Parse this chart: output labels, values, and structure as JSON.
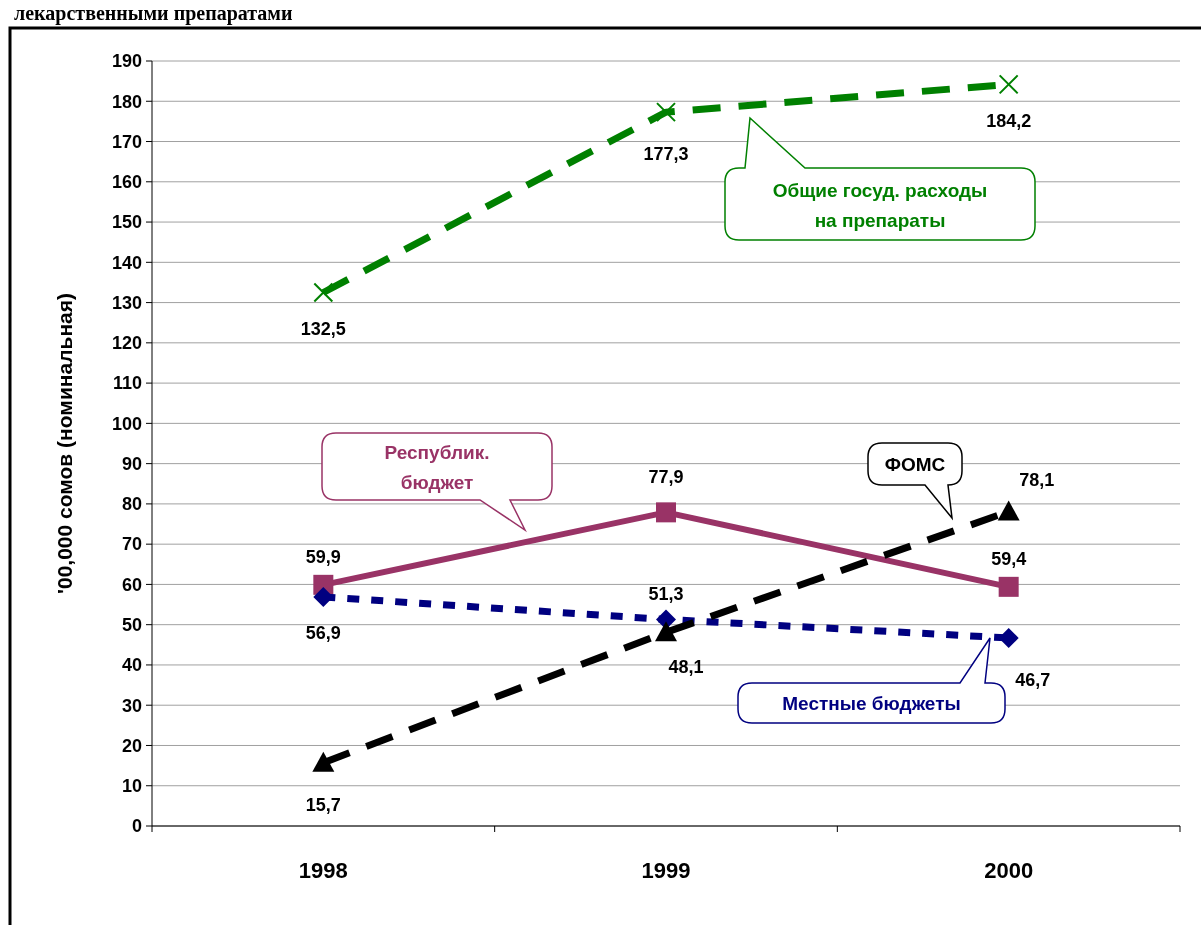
{
  "chart_data": {
    "type": "line",
    "title": "лекарственными препаратами",
    "ylabel": "'00,000 сомов (номинальная)",
    "categories": [
      "1998",
      "1999",
      "2000"
    ],
    "ylim": [
      0,
      190
    ],
    "yticks": [
      0,
      10,
      20,
      30,
      40,
      50,
      60,
      70,
      80,
      90,
      100,
      110,
      120,
      130,
      140,
      150,
      160,
      170,
      180,
      190
    ],
    "grid": "y",
    "legend": false,
    "series": [
      {
        "name": "Общие госуд. расходы\nна препараты",
        "color": "#008000",
        "values": [
          132.5,
          177.3,
          184.2
        ],
        "value_labels": [
          "132,5",
          "177,3",
          "184,2"
        ],
        "marker": "cross",
        "line_style": "dashed"
      },
      {
        "name": "Республик.\nбюджет",
        "color": "#993366",
        "values": [
          59.9,
          77.9,
          59.4
        ],
        "value_labels": [
          "59,9",
          "77,9",
          "59,4"
        ],
        "marker": "square",
        "line_style": "solid"
      },
      {
        "name": "Местные бюджеты",
        "color": "#000080",
        "values": [
          56.9,
          51.3,
          46.7
        ],
        "value_labels": [
          "56,9",
          "51,3",
          "46,7"
        ],
        "marker": "diamond",
        "line_style": "dotted"
      },
      {
        "name": "ФОМС",
        "color": "#000000",
        "values": [
          15.7,
          48.1,
          78.1
        ],
        "value_labels": [
          "15,7",
          "48,1",
          "78,1"
        ],
        "marker": "triangle",
        "line_style": "dashed"
      }
    ]
  }
}
